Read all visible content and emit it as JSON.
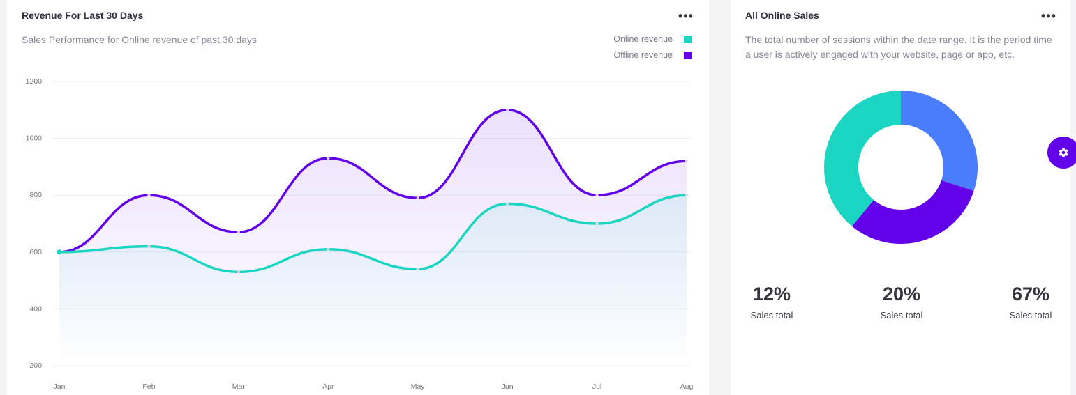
{
  "revenue_card": {
    "title": "Revenue For Last 30 Days",
    "subtitle": "Sales Performance for Online revenue of past 30 days",
    "menu_icon": "more-horizontal-icon"
  },
  "sales_card": {
    "title": "All Online Sales",
    "description": "The total number of sessions within the date range. It is the period time a user is actively engaged with your website, page or app, etc.",
    "menu_icon": "more-horizontal-icon",
    "stats": [
      {
        "value": "12%",
        "label": "Sales total"
      },
      {
        "value": "20%",
        "label": "Sales total"
      },
      {
        "value": "67%",
        "label": "Sales total"
      }
    ]
  },
  "settings_button": {
    "icon": "gear-icon",
    "color": "#6200ea"
  },
  "chart_data": [
    {
      "type": "area",
      "title": "",
      "categories": [
        "Jan",
        "Feb",
        "Mar",
        "Apr",
        "May",
        "Jun",
        "Jul",
        "Aug"
      ],
      "ylim": [
        200,
        1200
      ],
      "yticks": [
        200,
        400,
        600,
        800,
        1000,
        1200
      ],
      "grid": true,
      "legend_position": "top-right",
      "series": [
        {
          "name": "Online revenue",
          "color": "#1ad5c1",
          "values": [
            600,
            620,
            530,
            610,
            540,
            770,
            700,
            800
          ]
        },
        {
          "name": "Offline revenue",
          "color": "#6200ea",
          "values": [
            600,
            800,
            670,
            930,
            790,
            1100,
            800,
            920
          ]
        }
      ]
    },
    {
      "type": "pie",
      "title": "",
      "slices": [
        {
          "value": 30,
          "color": "#4a7dfb"
        },
        {
          "value": 31,
          "color": "#6200ea"
        },
        {
          "value": 39,
          "color": "#1ad5c1"
        }
      ]
    }
  ]
}
